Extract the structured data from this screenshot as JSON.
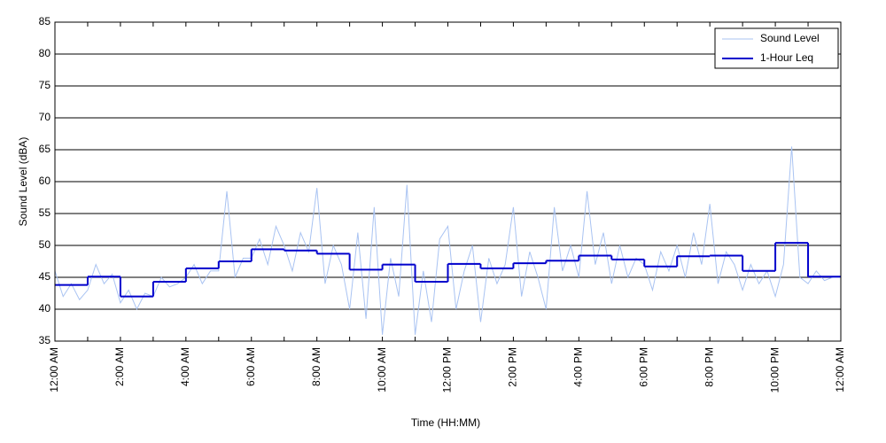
{
  "chart_data": {
    "type": "line",
    "xlabel": "Time (HH:MM)",
    "ylabel": "Sound Level (dBA)",
    "xlim": [
      0,
      24
    ],
    "ylim": [
      35,
      85
    ],
    "yticks": [
      35,
      40,
      45,
      50,
      55,
      60,
      65,
      70,
      75,
      80,
      85
    ],
    "xticks": [
      {
        "value": 0,
        "label": "12:00 AM"
      },
      {
        "value": 2,
        "label": "2:00 AM"
      },
      {
        "value": 4,
        "label": "4:00 AM"
      },
      {
        "value": 6,
        "label": "6:00 AM"
      },
      {
        "value": 8,
        "label": "8:00 AM"
      },
      {
        "value": 10,
        "label": "10:00 AM"
      },
      {
        "value": 12,
        "label": "12:00 PM"
      },
      {
        "value": 14,
        "label": "2:00 PM"
      },
      {
        "value": 16,
        "label": "4:00 PM"
      },
      {
        "value": 18,
        "label": "6:00 PM"
      },
      {
        "value": 20,
        "label": "8:00 PM"
      },
      {
        "value": 22,
        "label": "10:00 PM"
      },
      {
        "value": 24,
        "label": "12:00 AM"
      }
    ],
    "xminorticks": [
      1,
      3,
      5,
      7,
      9,
      11,
      13,
      15,
      17,
      19,
      21,
      23
    ],
    "grid": true,
    "legend": "upper right",
    "series": [
      {
        "name": "Sound Level",
        "color": "#a9c3f2",
        "style": "line",
        "x": [
          0,
          0.25,
          0.5,
          0.75,
          1,
          1.25,
          1.5,
          1.75,
          2,
          2.25,
          2.5,
          2.75,
          3,
          3.25,
          3.5,
          3.75,
          4,
          4.25,
          4.5,
          4.75,
          5,
          5.25,
          5.5,
          5.75,
          6,
          6.25,
          6.5,
          6.75,
          7,
          7.25,
          7.5,
          7.75,
          8,
          8.25,
          8.5,
          8.75,
          9,
          9.25,
          9.5,
          9.75,
          10,
          10.25,
          10.5,
          10.75,
          11,
          11.25,
          11.5,
          11.75,
          12,
          12.25,
          12.5,
          12.75,
          13,
          13.25,
          13.5,
          13.75,
          14,
          14.25,
          14.5,
          14.75,
          15,
          15.25,
          15.5,
          15.75,
          16,
          16.25,
          16.5,
          16.75,
          17,
          17.25,
          17.5,
          17.75,
          18,
          18.25,
          18.5,
          18.75,
          19,
          19.25,
          19.5,
          19.75,
          20,
          20.25,
          20.5,
          20.75,
          21,
          21.25,
          21.5,
          21.75,
          22,
          22.25,
          22.5,
          22.75,
          23,
          23.25,
          23.5,
          23.75,
          24
        ],
        "values": [
          46,
          42,
          44,
          41.5,
          43,
          47,
          44,
          45.5,
          41,
          43,
          40,
          42.5,
          42,
          45,
          43.5,
          44,
          45,
          47,
          44,
          46,
          46,
          58.5,
          45,
          48,
          48,
          51,
          47,
          53,
          50,
          46,
          52,
          49,
          59,
          44,
          50,
          47,
          40,
          52,
          38.5,
          56,
          36,
          48,
          42,
          59.5,
          36,
          46,
          38,
          51,
          53,
          40,
          46,
          50,
          38,
          48,
          44,
          47,
          56,
          42,
          49,
          45,
          40,
          56,
          46,
          50,
          45,
          58.5,
          47,
          52,
          44,
          50,
          45,
          48,
          47,
          43,
          49,
          46,
          50,
          45,
          52,
          47,
          56.5,
          44,
          49,
          47,
          43,
          47,
          44,
          46,
          42,
          47,
          65.5,
          45,
          44,
          46,
          44.5,
          45,
          45
        ]
      },
      {
        "name": "1-Hour Leq",
        "color": "#0000cc",
        "style": "step",
        "x": [
          0,
          1,
          2,
          3,
          4,
          5,
          6,
          7,
          8,
          9,
          10,
          11,
          12,
          13,
          14,
          15,
          16,
          17,
          18,
          19,
          20,
          21,
          22,
          23
        ],
        "values": [
          43.8,
          45.1,
          42.0,
          44.3,
          46.4,
          47.5,
          49.4,
          49.2,
          48.7,
          46.2,
          47.0,
          44.3,
          47.1,
          46.4,
          47.2,
          47.6,
          48.4,
          47.8,
          46.7,
          48.3,
          48.4,
          46.0,
          50.4,
          45.1
        ]
      }
    ]
  }
}
